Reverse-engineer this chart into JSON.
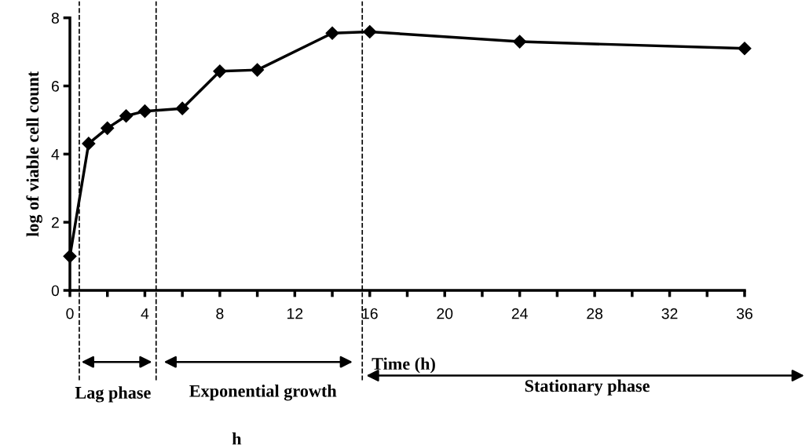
{
  "chart_data": {
    "type": "line",
    "xlabel": "Time (h)",
    "ylabel": "log of viable cell count",
    "x": [
      0,
      1,
      2,
      3,
      4,
      6,
      8,
      10,
      14,
      16,
      24,
      36
    ],
    "series": [
      {
        "color": "#000000",
        "values": [
          1.0,
          4.31,
          4.76,
          5.12,
          5.26,
          5.34,
          6.43,
          6.47,
          7.55,
          7.59,
          7.3,
          7.1
        ]
      }
    ],
    "xlim": [
      0,
      36
    ],
    "ylim": [
      0,
      8
    ],
    "xticks": [
      0,
      4,
      8,
      12,
      16,
      20,
      24,
      28,
      32,
      36
    ],
    "yticks": [
      0,
      2,
      4,
      6,
      8
    ],
    "marker": "diamond",
    "line_style": "solid",
    "grid": false,
    "legend": false,
    "ref_lines": [
      {
        "axis": "x",
        "value": 0.5,
        "line_style": "dashed",
        "color": "#000000"
      },
      {
        "axis": "x",
        "value": 4.6,
        "line_style": "dashed",
        "color": "#000000"
      },
      {
        "axis": "x",
        "value": 15.6,
        "line_style": "dashed",
        "color": "#000000"
      }
    ],
    "annotations": [
      "Lag phase",
      "Exponential growth",
      "Stationary phase",
      "h"
    ]
  }
}
